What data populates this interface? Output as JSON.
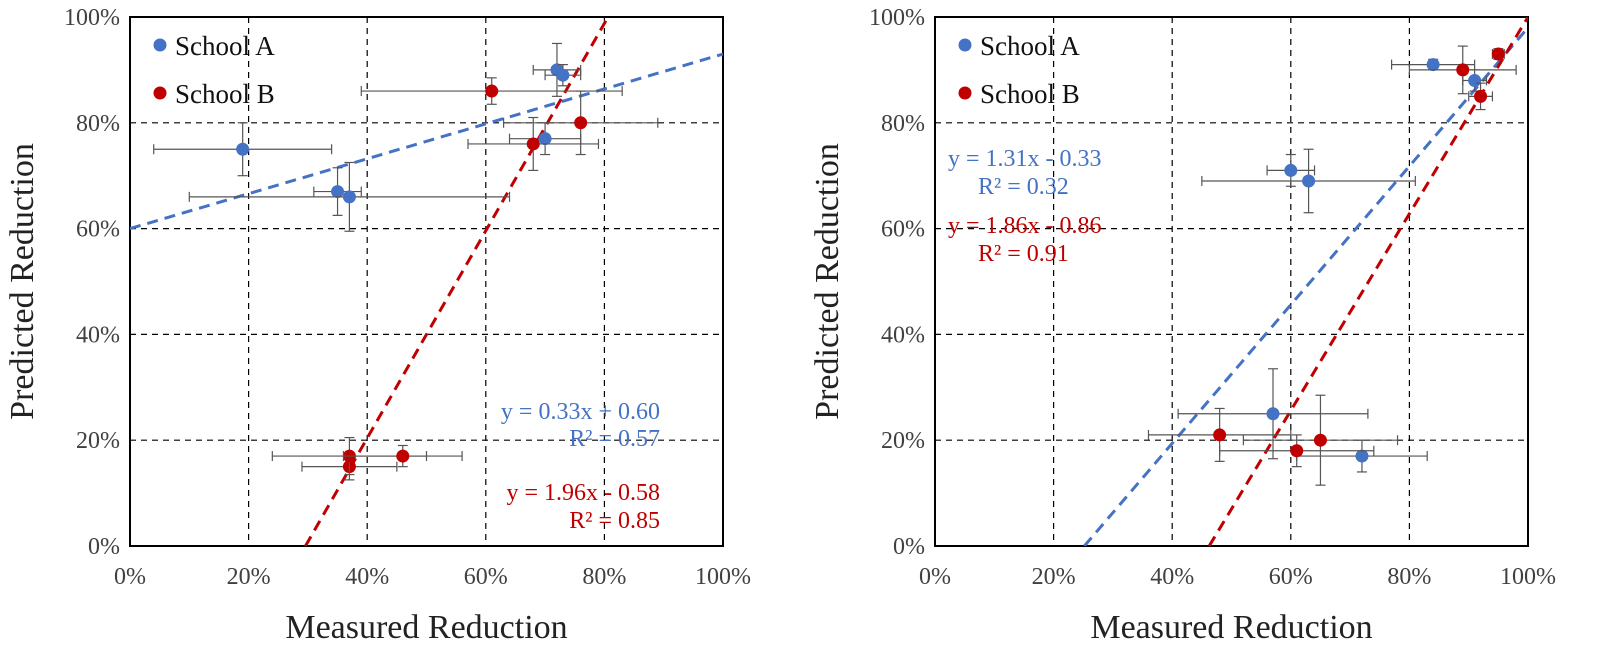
{
  "colors": {
    "school_a": "#4472c4",
    "school_b": "#c00000",
    "grid": "#000000",
    "errbar": "#555555"
  },
  "chart_data": [
    {
      "type": "scatter",
      "xlabel": "Measured Reduction",
      "ylabel": "Predicted Reduction",
      "xlim": [
        0,
        1
      ],
      "ylim": [
        0,
        1
      ],
      "xticks": [
        "0%",
        "20%",
        "40%",
        "60%",
        "80%",
        "100%"
      ],
      "yticks": [
        "0%",
        "20%",
        "40%",
        "60%",
        "80%",
        "100%"
      ],
      "legend": [
        {
          "name": "School A",
          "color": "#4472c4"
        },
        {
          "name": "School B",
          "color": "#c00000"
        }
      ],
      "legend_position": "top-left",
      "series": [
        {
          "name": "School A",
          "color": "#4472c4",
          "points": [
            {
              "x": 0.19,
              "y": 0.75,
              "xerr": 0.15,
              "yerr": 0.05
            },
            {
              "x": 0.35,
              "y": 0.67,
              "xerr": 0.04,
              "yerr": 0.045
            },
            {
              "x": 0.37,
              "y": 0.66,
              "xerr": 0.27,
              "yerr": 0.065
            },
            {
              "x": 0.7,
              "y": 0.77,
              "xerr": 0.06,
              "yerr": 0.03
            },
            {
              "x": 0.72,
              "y": 0.9,
              "xerr": 0.04,
              "yerr": 0.05
            },
            {
              "x": 0.73,
              "y": 0.89,
              "xerr": 0.03,
              "yerr": 0.02
            }
          ],
          "fit": {
            "slope": 0.33,
            "intercept": 0.6,
            "equation": "y = 0.33x + 0.60",
            "r2": "R² = 0.57"
          }
        },
        {
          "name": "School B",
          "color": "#c00000",
          "points": [
            {
              "x": 0.37,
              "y": 0.15,
              "xerr": 0.08,
              "yerr": 0.025
            },
            {
              "x": 0.37,
              "y": 0.17,
              "xerr": 0.13,
              "yerr": 0.035
            },
            {
              "x": 0.46,
              "y": 0.17,
              "xerr": 0.1,
              "yerr": 0.02
            },
            {
              "x": 0.61,
              "y": 0.86,
              "xerr": 0.22,
              "yerr": 0.025
            },
            {
              "x": 0.68,
              "y": 0.76,
              "xerr": 0.11,
              "yerr": 0.05
            },
            {
              "x": 0.76,
              "y": 0.8,
              "xerr": 0.13,
              "yerr": 0.06
            }
          ],
          "fit": {
            "slope": 1.96,
            "intercept": -0.58,
            "equation": "y = 1.96x - 0.58",
            "r2": "R² = 0.85"
          }
        }
      ]
    },
    {
      "type": "scatter",
      "xlabel": "Measured Reduction",
      "ylabel": "Predicted Reduction",
      "xlim": [
        0,
        1
      ],
      "ylim": [
        0,
        1
      ],
      "xticks": [
        "0%",
        "20%",
        "40%",
        "60%",
        "80%",
        "100%"
      ],
      "yticks": [
        "0%",
        "20%",
        "40%",
        "60%",
        "80%",
        "100%"
      ],
      "legend": [
        {
          "name": "School A",
          "color": "#4472c4"
        },
        {
          "name": "School B",
          "color": "#c00000"
        }
      ],
      "legend_position": "top-left",
      "series": [
        {
          "name": "School A",
          "color": "#4472c4",
          "points": [
            {
              "x": 0.6,
              "y": 0.71,
              "xerr": 0.04,
              "yerr": 0.03
            },
            {
              "x": 0.63,
              "y": 0.69,
              "xerr": 0.18,
              "yerr": 0.06
            },
            {
              "x": 0.57,
              "y": 0.25,
              "xerr": 0.16,
              "yerr": 0.085
            },
            {
              "x": 0.72,
              "y": 0.17,
              "xerr": 0.11,
              "yerr": 0.03
            },
            {
              "x": 0.84,
              "y": 0.91,
              "xerr": 0.07,
              "yerr": 0.01
            },
            {
              "x": 0.91,
              "y": 0.88,
              "xerr": 0.02,
              "yerr": 0.02
            }
          ],
          "fit": {
            "slope": 1.31,
            "intercept": -0.33,
            "equation": "y = 1.31x - 0.33",
            "r2": "R² = 0.32"
          }
        },
        {
          "name": "School B",
          "color": "#c00000",
          "points": [
            {
              "x": 0.48,
              "y": 0.21,
              "xerr": 0.12,
              "yerr": 0.05
            },
            {
              "x": 0.61,
              "y": 0.18,
              "xerr": 0.13,
              "yerr": 0.03
            },
            {
              "x": 0.65,
              "y": 0.2,
              "xerr": 0.13,
              "yerr": 0.085
            },
            {
              "x": 0.89,
              "y": 0.9,
              "xerr": 0.09,
              "yerr": 0.045
            },
            {
              "x": 0.92,
              "y": 0.85,
              "xerr": 0.02,
              "yerr": 0.025
            },
            {
              "x": 0.95,
              "y": 0.93,
              "xerr": 0.01,
              "yerr": 0.01
            }
          ],
          "fit": {
            "slope": 1.86,
            "intercept": -0.86,
            "equation": "y = 1.86x - 0.86",
            "r2": "R² = 0.91"
          }
        }
      ]
    }
  ]
}
